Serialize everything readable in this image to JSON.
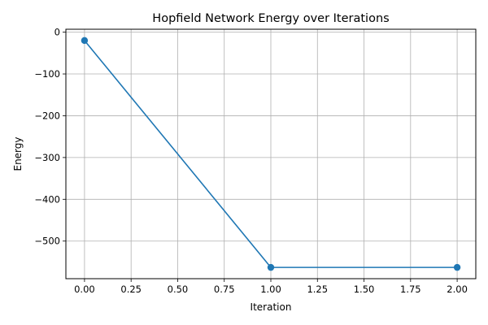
{
  "colors": {
    "line": "#1f77b4",
    "marker": "#1f77b4",
    "grid": "#b0b0b0",
    "axes": "#000000",
    "background": "#ffffff"
  },
  "chart_data": {
    "type": "line",
    "title": "Hopfield Network Energy over Iterations",
    "xlabel": "Iteration",
    "ylabel": "Energy",
    "x": [
      0,
      1,
      2
    ],
    "series": [
      {
        "values": [
          -20,
          -563,
          -563
        ],
        "marker": "circle"
      }
    ],
    "xlim": [
      -0.1,
      2.1
    ],
    "ylim": [
      -590,
      7
    ],
    "xticks": [
      0,
      0.25,
      0.5,
      0.75,
      1,
      1.25,
      1.5,
      1.75,
      2
    ],
    "xtick_labels": [
      "0.00",
      "0.25",
      "0.50",
      "0.75",
      "1.00",
      "1.25",
      "1.50",
      "1.75",
      "2.00"
    ],
    "yticks": [
      0,
      -100,
      -200,
      -300,
      -400,
      -500
    ],
    "ytick_labels": [
      "0",
      "−100",
      "−200",
      "−300",
      "−400",
      "−500"
    ],
    "grid": true,
    "legend": "none"
  }
}
